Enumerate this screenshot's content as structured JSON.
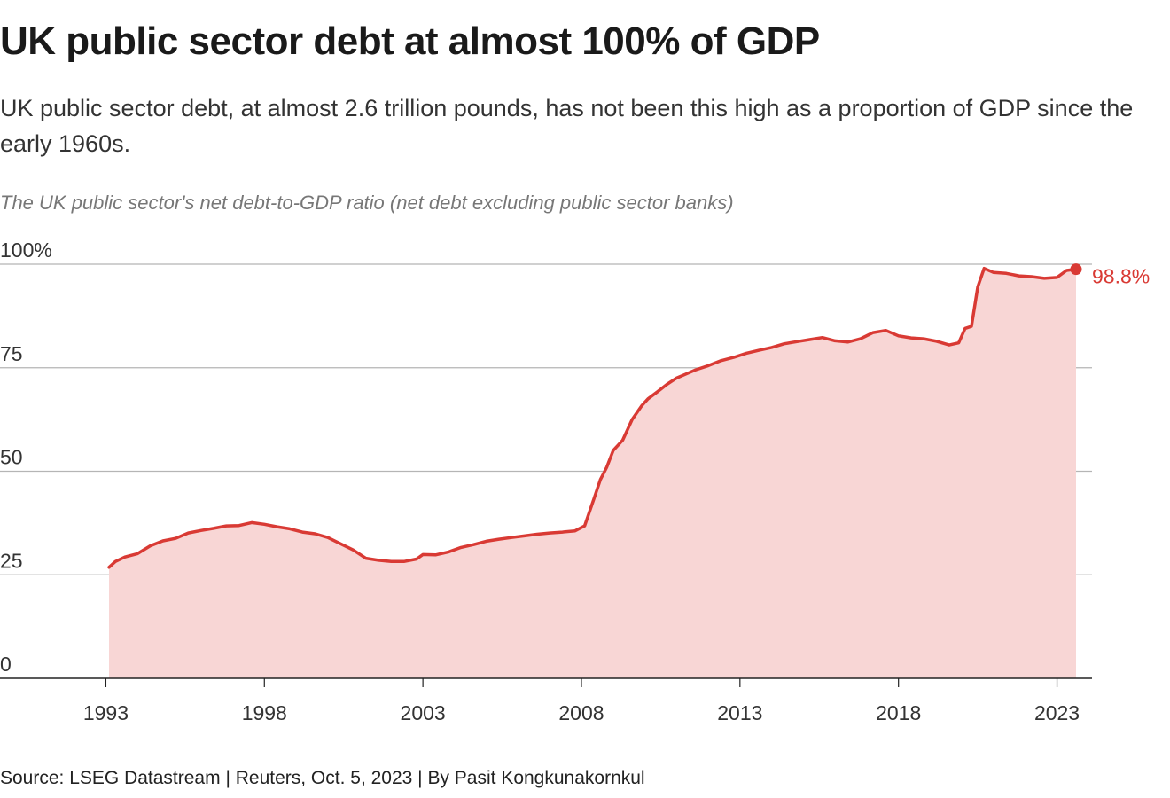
{
  "header": {
    "title": "UK public sector debt at almost 100% of GDP",
    "subtitle": "UK public sector debt, at almost 2.6 trillion pounds, has not been this high as a proportion of GDP since the early 1960s.",
    "chart_title": "The UK public sector's net debt-to-GDP ratio (net debt excluding public sector banks)"
  },
  "footer": {
    "source": "Source: LSEG Datastream | Reuters, Oct. 5, 2023 | By Pasit Kongkunakornkul"
  },
  "colors": {
    "line": "#d93a34",
    "area": "#f8d6d5",
    "grid": "#b5b5b5",
    "axis": "#222222",
    "label_end": "#d93a34"
  },
  "chart_data": {
    "type": "area",
    "title": "The UK public sector's net debt-to-GDP ratio (net debt excluding public sector banks)",
    "xlabel": "",
    "ylabel": "",
    "xlim": [
      1992.8,
      2024.1
    ],
    "ylim": [
      0,
      100
    ],
    "y_ticks": [
      0,
      25,
      50,
      75,
      100
    ],
    "y_tick_labels": [
      "0",
      "25",
      "50",
      "75",
      "100%"
    ],
    "x_ticks": [
      1993,
      1998,
      2003,
      2008,
      2013,
      2018,
      2023
    ],
    "x_tick_labels": [
      "1993",
      "1998",
      "2003",
      "2008",
      "2013",
      "2018",
      "2023"
    ],
    "grid": true,
    "end_label": "98.8%",
    "series": [
      {
        "x": [
          1993.1,
          1993.3,
          1993.6,
          1994.0,
          1994.4,
          1994.8,
          1995.2,
          1995.6,
          1996.0,
          1996.4,
          1996.8,
          1997.2,
          1997.6,
          1998.0,
          1998.4,
          1998.8,
          1999.2,
          1999.6,
          2000.0,
          2000.4,
          2000.8,
          2001.2,
          2001.6,
          2002.0,
          2002.4,
          2002.8,
          2003.0,
          2003.4,
          2003.8,
          2004.2,
          2004.6,
          2005.0,
          2005.4,
          2005.8,
          2006.2,
          2006.6,
          2007.0,
          2007.4,
          2007.8,
          2008.1,
          2008.4,
          2008.6,
          2008.8,
          2009.0,
          2009.3,
          2009.6,
          2009.9,
          2010.1,
          2010.4,
          2010.7,
          2011.0,
          2011.3,
          2011.6,
          2012.0,
          2012.4,
          2012.8,
          2013.2,
          2013.6,
          2014.0,
          2014.4,
          2014.8,
          2015.2,
          2015.6,
          2016.0,
          2016.4,
          2016.8,
          2017.2,
          2017.6,
          2018.0,
          2018.4,
          2018.8,
          2019.2,
          2019.6,
          2019.9,
          2020.1,
          2020.3,
          2020.5,
          2020.7,
          2021.0,
          2021.4,
          2021.8,
          2022.2,
          2022.6,
          2023.0,
          2023.3,
          2023.6
        ],
        "y": [
          26.8,
          28.2,
          29.3,
          30.1,
          32.0,
          33.2,
          33.8,
          35.1,
          35.7,
          36.2,
          36.8,
          36.9,
          37.6,
          37.2,
          36.6,
          36.1,
          35.3,
          34.9,
          34.0,
          32.5,
          31.0,
          29.0,
          28.5,
          28.2,
          28.2,
          28.8,
          29.9,
          29.8,
          30.5,
          31.6,
          32.3,
          33.1,
          33.6,
          34.0,
          34.4,
          34.8,
          35.1,
          35.3,
          35.6,
          36.8,
          43.5,
          48.0,
          51.0,
          55.0,
          57.5,
          62.5,
          65.8,
          67.5,
          69.2,
          71.0,
          72.5,
          73.5,
          74.5,
          75.5,
          76.7,
          77.5,
          78.5,
          79.2,
          79.9,
          80.8,
          81.3,
          81.8,
          82.3,
          81.5,
          81.2,
          82.0,
          83.5,
          84.0,
          82.7,
          82.2,
          82.0,
          81.4,
          80.5,
          81.0,
          84.5,
          85.0,
          94.5,
          99.0,
          98.0,
          97.8,
          97.2,
          97.0,
          96.6,
          96.8,
          98.5,
          98.8
        ]
      }
    ]
  }
}
